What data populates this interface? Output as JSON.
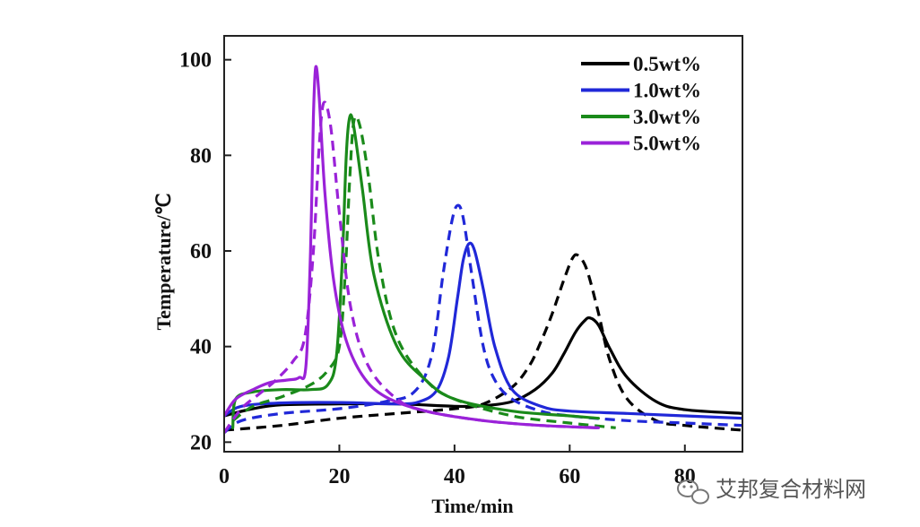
{
  "chart_data": {
    "type": "line",
    "title": "",
    "xlabel": "Time/min",
    "ylabel": "Temperature/℃",
    "xlim": [
      0,
      90
    ],
    "ylim": [
      18,
      105
    ],
    "xticks": [
      0,
      20,
      40,
      60,
      80
    ],
    "yticks": [
      20,
      40,
      60,
      80,
      100
    ],
    "grid": false,
    "legend_position": "top-right",
    "series": [
      {
        "name": "0.5wt%",
        "color": "#000000",
        "style": "solid",
        "x": [
          0,
          5,
          10,
          20,
          30,
          40,
          45,
          50,
          54,
          57,
          59,
          61,
          62.5,
          63.5,
          65,
          67,
          70,
          75,
          80,
          90
        ],
        "y": [
          25.5,
          27,
          27.8,
          28,
          28,
          27.5,
          27.6,
          28.5,
          31,
          34.5,
          38.5,
          43,
          45.3,
          46,
          44.5,
          39.5,
          33.5,
          28.5,
          26.8,
          26
        ]
      },
      {
        "name": "0.5wt%",
        "color": "#000000",
        "style": "dashed",
        "x": [
          0,
          10,
          20,
          30,
          40,
          45,
          50,
          53,
          55,
          57,
          59,
          60.5,
          61.5,
          63,
          65,
          67,
          70,
          75,
          80,
          90
        ],
        "y": [
          22.5,
          23.5,
          25,
          26,
          27,
          28,
          31.5,
          36,
          41,
          47,
          54,
          58.5,
          59,
          56,
          47,
          37,
          29,
          24.5,
          23.5,
          22.5
        ]
      },
      {
        "name": "1.0wt%",
        "color": "#2028d8",
        "style": "solid",
        "x": [
          0,
          3,
          10,
          20,
          30,
          34,
          37,
          39,
          40.5,
          41.5,
          42.5,
          43.5,
          45,
          47,
          50,
          55,
          60,
          70,
          80,
          90
        ],
        "y": [
          25.5,
          27.5,
          28.2,
          28.3,
          28,
          28.5,
          31,
          38,
          50,
          58,
          61.5,
          60,
          52,
          40,
          31,
          27.5,
          26.5,
          26,
          25.5,
          25
        ]
      },
      {
        "name": "1.0wt%",
        "color": "#2028d8",
        "style": "dashed",
        "x": [
          0,
          3,
          10,
          20,
          28,
          33,
          36,
          38,
          39.5,
          40.5,
          41.5,
          43,
          45,
          47,
          50,
          55,
          60,
          70,
          80,
          90
        ],
        "y": [
          22,
          24.5,
          26,
          27,
          28.5,
          30.5,
          38,
          55,
          66,
          69.5,
          67,
          55,
          40,
          33,
          29,
          26.5,
          25.5,
          24.5,
          24,
          23.5
        ]
      },
      {
        "name": "3.0wt%",
        "color": "#1a8a1a",
        "style": "solid",
        "x": [
          1.5,
          2,
          5,
          10,
          15,
          18,
          19.5,
          20.5,
          21.2,
          21.8,
          22.5,
          24,
          26,
          30,
          35,
          40,
          50,
          60,
          65
        ],
        "y": [
          23,
          29,
          30.5,
          31,
          31,
          32,
          38,
          58,
          80,
          88,
          86,
          73,
          55,
          40,
          33,
          29,
          26.5,
          25.5,
          25
        ]
      },
      {
        "name": "3.0wt%",
        "color": "#1a8a1a",
        "style": "dashed",
        "x": [
          1.5,
          5,
          10,
          15,
          18,
          20,
          21,
          21.8,
          22.5,
          23.5,
          25,
          27,
          30,
          35,
          40,
          50,
          60,
          68
        ],
        "y": [
          24.5,
          27.5,
          29.5,
          32,
          35,
          40,
          55,
          75,
          87,
          86.5,
          76,
          57,
          42,
          33,
          29,
          25.5,
          24,
          23
        ]
      },
      {
        "name": "5.0wt%",
        "color": "#9a22d8",
        "style": "solid",
        "x": [
          0,
          2,
          5,
          8,
          11,
          13,
          14.2,
          15,
          15.5,
          15.9,
          16.5,
          17.5,
          19,
          21,
          24,
          28,
          35,
          45,
          55,
          65
        ],
        "y": [
          25.5,
          29,
          31,
          32.5,
          33,
          33.5,
          36,
          60,
          88,
          98.5,
          92,
          72,
          54,
          42,
          34,
          29.5,
          26.5,
          24.5,
          23.5,
          23
        ]
      },
      {
        "name": "5.0wt%",
        "color": "#9a22d8",
        "style": "dashed",
        "x": [
          0,
          3,
          6,
          9,
          12,
          14,
          15.5,
          16.5,
          17.3,
          18.5,
          20,
          22,
          25,
          30,
          35,
          45,
          55,
          65
        ],
        "y": [
          22,
          27,
          30,
          33,
          37,
          42,
          60,
          82,
          91,
          86,
          68,
          48,
          36,
          29,
          26.5,
          24.5,
          23.5,
          23
        ]
      }
    ],
    "legend": [
      {
        "label": "0.5wt%",
        "color": "#000000"
      },
      {
        "label": "1.0wt%",
        "color": "#2028d8"
      },
      {
        "label": "3.0wt%",
        "color": "#1a8a1a"
      },
      {
        "label": "5.0wt%",
        "color": "#9a22d8"
      }
    ]
  },
  "watermark": {
    "text": "艾邦复合材料网",
    "icon": "wechat-icon"
  }
}
